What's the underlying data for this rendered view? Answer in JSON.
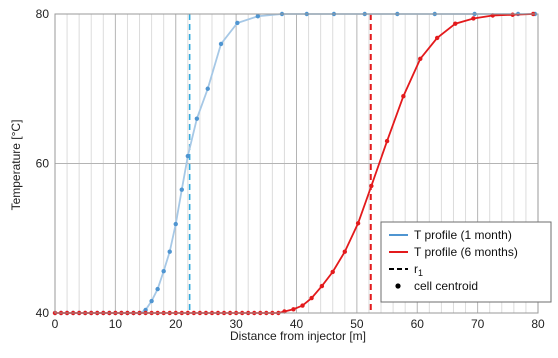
{
  "chart_data": {
    "type": "line",
    "xlabel": "Distance from injector [m]",
    "ylabel": "Temperature [°C]",
    "xlim": [
      0,
      80
    ],
    "ylim": [
      40,
      80
    ],
    "x_ticks": [
      0,
      10,
      20,
      30,
      40,
      50,
      60,
      70,
      80
    ],
    "y_ticks": [
      40,
      60,
      80
    ],
    "grid": true,
    "minor_grid_x_step": 2,
    "series": [
      {
        "name": "T profile (1 month)",
        "color": "#4f95d1",
        "line_color": "#a6c8e6",
        "x": [
          0,
          1,
          2,
          3,
          4,
          5,
          6,
          7,
          8,
          9,
          10,
          11,
          12,
          13,
          14,
          15,
          16,
          17,
          18,
          19,
          20,
          21,
          22,
          23.5,
          25.3,
          27.5,
          30.2,
          33.6,
          37.6,
          41.7,
          46.2,
          51.3,
          56.7,
          62.9,
          69.5,
          76.7,
          79.5
        ],
        "y": [
          40,
          40,
          40,
          40,
          40,
          40,
          40,
          40,
          40,
          40,
          40,
          40,
          40,
          40,
          40,
          40.4,
          41.6,
          43.2,
          45.6,
          48.2,
          51.9,
          56.5,
          61,
          66,
          70,
          76,
          78.8,
          79.7,
          80,
          80,
          80,
          80,
          80,
          80,
          80,
          80,
          80
        ]
      },
      {
        "name": "T profile (6 months)",
        "color": "#e31a1c",
        "line_color": "#e31a1c",
        "x": [
          0,
          1,
          2,
          3,
          4,
          5,
          6,
          7,
          8,
          9,
          10,
          11,
          12,
          13,
          14,
          15,
          16,
          17,
          18,
          19,
          20,
          21,
          22,
          23,
          24,
          25,
          26,
          27,
          28,
          29,
          30,
          31,
          32,
          33,
          34,
          35,
          36,
          37,
          38,
          39.5,
          41,
          42.5,
          44.2,
          46,
          48,
          50.2,
          52.4,
          55,
          57.7,
          60.5,
          63.3,
          66.3,
          69.3,
          72.5,
          75.8,
          79.2
        ],
        "y": [
          40,
          40,
          40,
          40,
          40,
          40,
          40,
          40,
          40,
          40,
          40,
          40,
          40,
          40,
          40,
          40,
          40,
          40,
          40,
          40,
          40,
          40,
          40,
          40,
          40,
          40,
          40,
          40,
          40,
          40,
          40,
          40,
          40,
          40,
          40,
          40,
          40,
          40,
          40.2,
          40.5,
          41,
          42,
          43.6,
          45.5,
          48.2,
          52,
          57,
          63,
          69,
          74,
          76.8,
          78.7,
          79.4,
          79.8,
          79.9,
          80
        ]
      }
    ],
    "vertical_lines": [
      {
        "x": 22.3,
        "color": "#33aadd",
        "style": "dashed"
      },
      {
        "x": 52.3,
        "color": "#e31a1c",
        "style": "dashed"
      }
    ],
    "legend": {
      "placement": "bottom-right",
      "entries": [
        {
          "label": "T profile (1 month)",
          "kind": "line",
          "color": "#4f95d1"
        },
        {
          "label": "T profile (6 months)",
          "kind": "line",
          "color": "#e31a1c"
        },
        {
          "label": "r",
          "sub": "1",
          "kind": "dash",
          "color": "#000000"
        },
        {
          "label": "cell centroid",
          "kind": "dot",
          "color": "#000000"
        }
      ]
    }
  }
}
